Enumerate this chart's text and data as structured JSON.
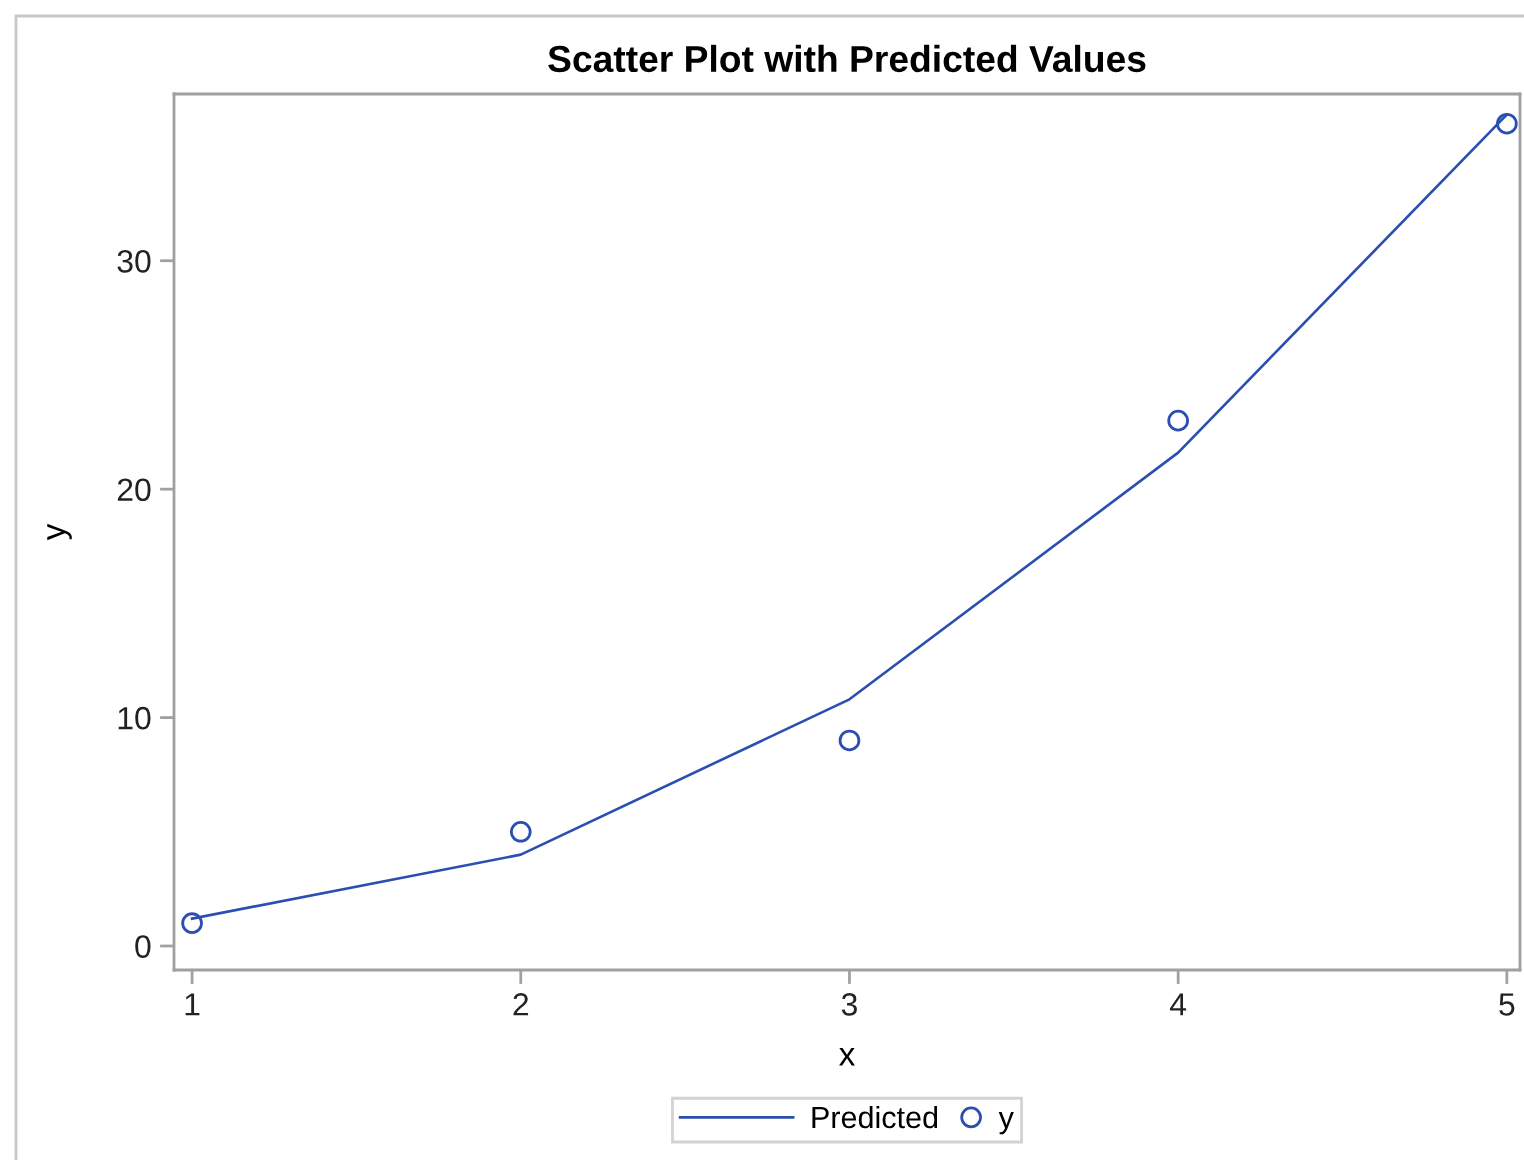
{
  "chart_data": {
    "type": "scatter",
    "title": "Scatter Plot with Predicted Values",
    "xlabel": "x",
    "ylabel": "y",
    "x": [
      1,
      2,
      3,
      4,
      5
    ],
    "series": [
      {
        "name": "Predicted",
        "type": "line",
        "color": "#2a4fb0",
        "values": [
          1.2,
          4.0,
          10.8,
          21.6,
          36.4
        ],
        "marker": "none",
        "line_style": "solid"
      },
      {
        "name": "y",
        "color": "#2a4fb0",
        "values": [
          1,
          5,
          9,
          23,
          36
        ],
        "marker": "circle"
      }
    ],
    "xlim": [
      0.945,
      5.04
    ],
    "xticks": [
      1,
      2,
      3,
      4,
      5
    ],
    "ylim": [
      -1.05,
      37.3
    ],
    "yticks": [
      0,
      10,
      20,
      30
    ],
    "grid": false,
    "legend": "bottom"
  }
}
